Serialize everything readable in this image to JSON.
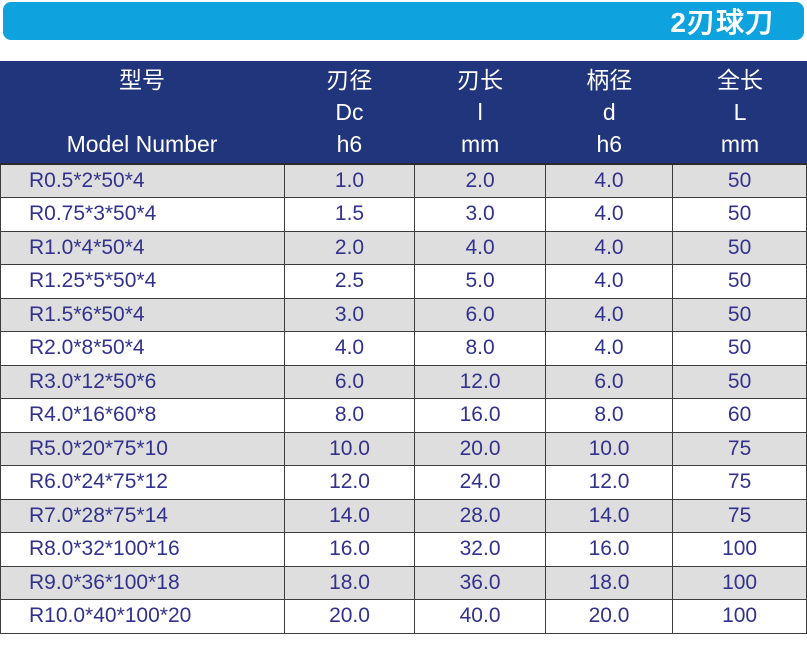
{
  "title_bar": {
    "label": "2刃球刀"
  },
  "table": {
    "header": {
      "columns": [
        {
          "zh": "型号",
          "mid": "",
          "sub": "Model Number"
        },
        {
          "zh": "刃径",
          "mid": "Dc",
          "sub": "h6"
        },
        {
          "zh": "刃长",
          "mid": "l",
          "sub": "mm"
        },
        {
          "zh": "柄径",
          "mid": "d",
          "sub": "h6"
        },
        {
          "zh": "全长",
          "mid": "L",
          "sub": "mm"
        }
      ]
    },
    "rows": [
      [
        "R0.5*2*50*4",
        "1.0",
        "2.0",
        "4.0",
        "50"
      ],
      [
        "R0.75*3*50*4",
        "1.5",
        "3.0",
        "4.0",
        "50"
      ],
      [
        "R1.0*4*50*4",
        "2.0",
        "4.0",
        "4.0",
        "50"
      ],
      [
        "R1.25*5*50*4",
        "2.5",
        "5.0",
        "4.0",
        "50"
      ],
      [
        "R1.5*6*50*4",
        "3.0",
        "6.0",
        "4.0",
        "50"
      ],
      [
        "R2.0*8*50*4",
        "4.0",
        "8.0",
        "4.0",
        "50"
      ],
      [
        "R3.0*12*50*6",
        "6.0",
        "12.0",
        "6.0",
        "50"
      ],
      [
        "R4.0*16*60*8",
        "8.0",
        "16.0",
        "8.0",
        "60"
      ],
      [
        "R5.0*20*75*10",
        "10.0",
        "20.0",
        "10.0",
        "75"
      ],
      [
        "R6.0*24*75*12",
        "12.0",
        "24.0",
        "12.0",
        "75"
      ],
      [
        "R7.0*28*75*14",
        "14.0",
        "28.0",
        "14.0",
        "75"
      ],
      [
        "R8.0*32*100*16",
        "16.0",
        "32.0",
        "16.0",
        "100"
      ],
      [
        "R9.0*36*100*18",
        "18.0",
        "36.0",
        "18.0",
        "100"
      ],
      [
        "R10.0*40*100*20",
        "20.0",
        "40.0",
        "20.0",
        "100"
      ]
    ]
  },
  "colors": {
    "title_bar_bg": "#0ea2de",
    "header_bg": "#21357d",
    "row_alt_bg": "#dedede",
    "row_text": "#32328e",
    "border": "#3d3d3d"
  }
}
